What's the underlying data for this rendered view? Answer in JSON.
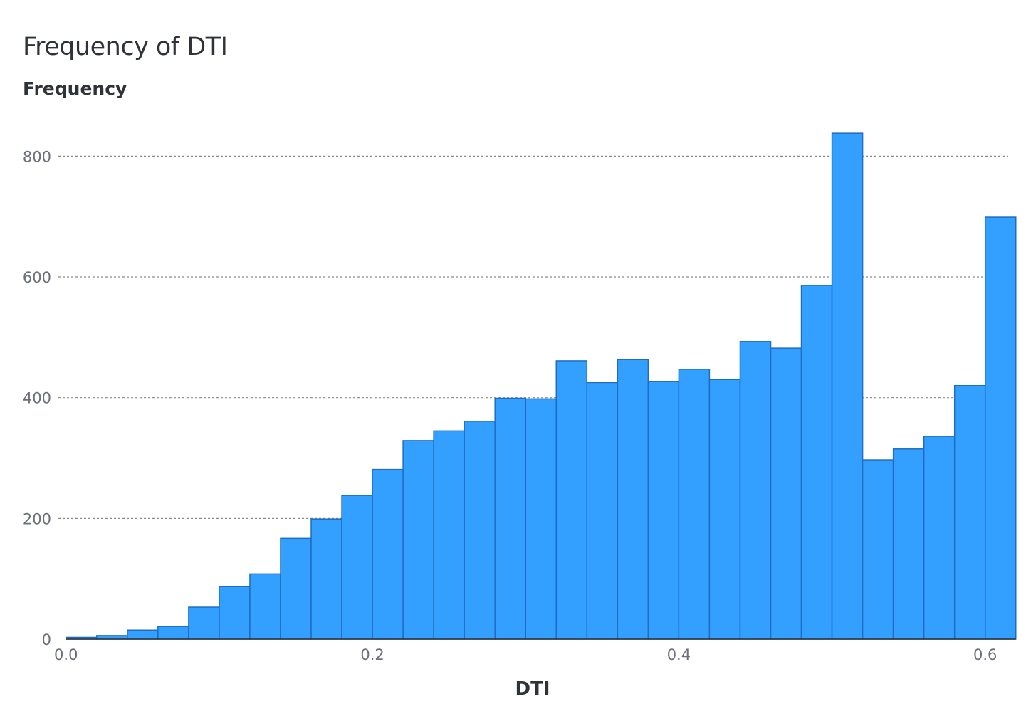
{
  "chart_data": {
    "type": "bar",
    "title": "Frequency of DTI",
    "xlabel": "DTI",
    "ylabel": "Frequency",
    "xlim": [
      -0.005,
      0.615
    ],
    "ylim": [
      0,
      870
    ],
    "grid": true,
    "bar_color": "#33a0ff",
    "bar_edge_color": "#1f6cc0",
    "y_ticks": [
      0,
      200,
      400,
      600,
      800
    ],
    "x_ticks": [
      0.0,
      0.2,
      0.4,
      0.6
    ],
    "x_tick_labels": [
      "0.0",
      "0.2",
      "0.4",
      "0.6"
    ],
    "bin_width": 0.02,
    "bins_start": [
      0.0,
      0.02,
      0.04,
      0.06,
      0.08,
      0.1,
      0.12,
      0.14,
      0.16,
      0.18,
      0.2,
      0.22,
      0.24,
      0.26,
      0.28,
      0.3,
      0.32,
      0.34,
      0.36,
      0.38,
      0.4,
      0.42,
      0.44,
      0.46,
      0.48,
      0.5,
      0.52,
      0.54,
      0.56,
      0.58,
      0.6
    ],
    "values": [
      3,
      6,
      15,
      21,
      53,
      87,
      108,
      167,
      199,
      238,
      281,
      329,
      345,
      361,
      399,
      398,
      461,
      425,
      463,
      427,
      447,
      430,
      493,
      482,
      586,
      838,
      297,
      315,
      336,
      420,
      699
    ]
  }
}
